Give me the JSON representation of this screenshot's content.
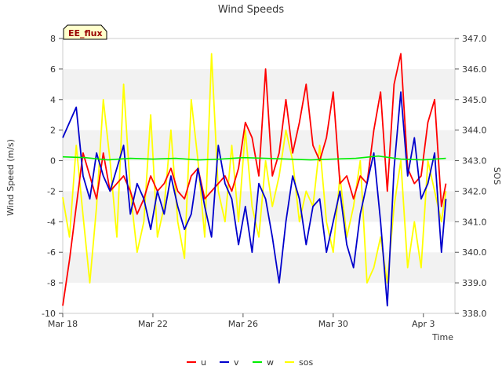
{
  "chart_data": {
    "type": "line",
    "title": "Wind Speeds",
    "xlabel": "Time",
    "ylabel": "Wind Speed (m/s)",
    "y2label": "SOS",
    "badge": "EE_flux",
    "ylim": [
      -10,
      8
    ],
    "y2lim": [
      338.0,
      347.0
    ],
    "xlim_days": [
      0,
      17.4
    ],
    "x_ticks": [
      {
        "label": "Mar 18",
        "day": 0
      },
      {
        "label": "Mar 22",
        "day": 4
      },
      {
        "label": "Mar 26",
        "day": 8
      },
      {
        "label": "Mar 30",
        "day": 12
      },
      {
        "label": "Apr 3",
        "day": 16
      }
    ],
    "y_ticks": [
      "-10",
      "-8",
      "-6",
      "-4",
      "-2",
      "0",
      "2",
      "4",
      "6",
      "8"
    ],
    "y2_ticks": [
      "338.0",
      "339.0",
      "340.0",
      "341.0",
      "342.0",
      "343.0",
      "344.0",
      "345.0",
      "346.0",
      "347.0"
    ],
    "series": [
      {
        "name": "u",
        "axis": "left",
        "color": "#ff0000",
        "x": [
          0.0,
          0.3,
          0.6,
          0.9,
          1.2,
          1.5,
          1.8,
          2.1,
          2.4,
          2.7,
          3.0,
          3.3,
          3.6,
          3.9,
          4.2,
          4.5,
          4.8,
          5.1,
          5.4,
          5.7,
          6.0,
          6.3,
          6.6,
          6.9,
          7.2,
          7.5,
          7.8,
          8.1,
          8.4,
          8.7,
          9.0,
          9.3,
          9.6,
          9.9,
          10.2,
          10.5,
          10.8,
          11.1,
          11.4,
          11.7,
          12.0,
          12.3,
          12.6,
          12.9,
          13.2,
          13.5,
          13.8,
          14.1,
          14.4,
          14.7,
          15.0,
          15.3,
          15.6,
          15.9,
          16.2,
          16.5,
          16.8,
          17.0
        ],
        "values": [
          -9.5,
          -6.5,
          -3.0,
          0.5,
          -1.0,
          -2.5,
          0.5,
          -2.0,
          -1.5,
          -1.0,
          -2.0,
          -3.5,
          -2.5,
          -1.0,
          -2.0,
          -1.5,
          -0.5,
          -2.0,
          -2.5,
          -1.0,
          -0.5,
          -2.5,
          -2.0,
          -1.5,
          -1.0,
          -2.0,
          -0.5,
          2.5,
          1.5,
          -1.0,
          6.0,
          -1.0,
          0.5,
          4.0,
          0.5,
          2.5,
          5.0,
          1.0,
          0.0,
          1.5,
          4.5,
          -1.5,
          -1.0,
          -2.5,
          -1.0,
          -1.5,
          2.0,
          4.5,
          -2.0,
          5.0,
          7.0,
          -0.5,
          -1.5,
          -1.0,
          2.5,
          4.0,
          -3.0,
          -1.5
        ]
      },
      {
        "name": "v",
        "axis": "left",
        "color": "#0000cc",
        "x": [
          0.0,
          0.3,
          0.6,
          0.9,
          1.2,
          1.5,
          1.8,
          2.1,
          2.4,
          2.7,
          3.0,
          3.3,
          3.6,
          3.9,
          4.2,
          4.5,
          4.8,
          5.1,
          5.4,
          5.7,
          6.0,
          6.3,
          6.6,
          6.9,
          7.2,
          7.5,
          7.8,
          8.1,
          8.4,
          8.7,
          9.0,
          9.3,
          9.6,
          9.9,
          10.2,
          10.5,
          10.8,
          11.1,
          11.4,
          11.7,
          12.0,
          12.3,
          12.6,
          12.9,
          13.2,
          13.5,
          13.8,
          14.1,
          14.4,
          14.7,
          15.0,
          15.3,
          15.6,
          15.9,
          16.2,
          16.5,
          16.8,
          17.0
        ],
        "values": [
          1.5,
          2.5,
          3.5,
          -1.0,
          -2.5,
          0.5,
          -1.0,
          -2.0,
          -0.5,
          1.0,
          -3.5,
          -1.5,
          -2.5,
          -4.5,
          -2.0,
          -3.5,
          -1.0,
          -3.0,
          -4.5,
          -3.5,
          -0.5,
          -3.0,
          -5.0,
          1.0,
          -1.5,
          -2.5,
          -5.5,
          -3.0,
          -6.0,
          -1.5,
          -2.5,
          -5.0,
          -8.0,
          -4.0,
          -1.0,
          -2.5,
          -5.5,
          -3.0,
          -2.5,
          -6.0,
          -4.0,
          -2.0,
          -5.5,
          -7.0,
          -3.5,
          -1.5,
          0.5,
          -4.0,
          -9.5,
          -0.5,
          4.5,
          -1.0,
          1.5,
          -2.5,
          -1.5,
          0.5,
          -6.0,
          -2.5
        ]
      },
      {
        "name": "w",
        "axis": "left",
        "color": "#00ee00",
        "x": [
          0.0,
          1.0,
          2.0,
          3.0,
          4.0,
          5.0,
          6.0,
          7.0,
          8.0,
          9.0,
          10.0,
          11.0,
          12.0,
          13.0,
          14.0,
          15.0,
          16.0,
          17.0
        ],
        "values": [
          0.25,
          0.2,
          0.05,
          0.15,
          0.1,
          0.15,
          0.05,
          0.1,
          0.2,
          0.15,
          0.1,
          0.05,
          0.1,
          0.15,
          0.3,
          0.1,
          0.05,
          0.15
        ]
      },
      {
        "name": "sos",
        "axis": "right",
        "color": "#ffff00",
        "x": [
          0.0,
          0.3,
          0.6,
          0.9,
          1.2,
          1.5,
          1.8,
          2.1,
          2.4,
          2.7,
          3.0,
          3.3,
          3.6,
          3.9,
          4.2,
          4.5,
          4.8,
          5.1,
          5.4,
          5.7,
          6.0,
          6.3,
          6.6,
          6.9,
          7.2,
          7.5,
          7.8,
          8.1,
          8.4,
          8.7,
          9.0,
          9.3,
          9.6,
          9.9,
          10.2,
          10.5,
          10.8,
          11.1,
          11.4,
          11.7,
          12.0,
          12.3,
          12.6,
          12.9,
          13.2,
          13.5,
          13.8,
          14.1,
          14.4,
          14.7,
          15.0,
          15.3,
          15.6,
          15.9,
          16.2,
          16.5,
          16.8,
          17.0
        ],
        "values": [
          341.8,
          340.5,
          343.5,
          341.2,
          339.0,
          341.5,
          345.0,
          343.0,
          340.5,
          345.5,
          342.0,
          340.0,
          341.0,
          344.5,
          340.5,
          341.5,
          344.0,
          341.0,
          339.8,
          345.0,
          343.0,
          340.5,
          346.5,
          342.0,
          341.0,
          343.5,
          341.0,
          344.0,
          341.5,
          340.5,
          343.0,
          341.5,
          342.5,
          344.0,
          343.0,
          341.0,
          342.0,
          341.5,
          343.5,
          341.0,
          340.0,
          342.5,
          340.5,
          341.5,
          343.0,
          339.0,
          339.5,
          340.5,
          339.0,
          341.5,
          343.0,
          339.5,
          341.0,
          339.5,
          343.0,
          342.0,
          341.0,
          342.0
        ]
      }
    ]
  }
}
